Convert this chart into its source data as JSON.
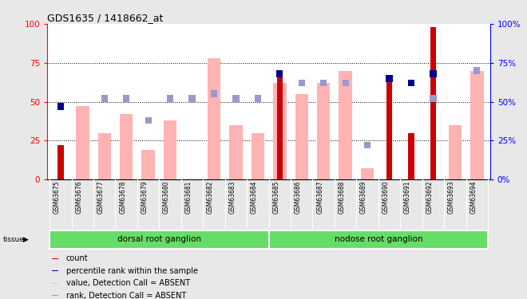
{
  "title": "GDS1635 / 1418662_at",
  "samples": [
    "GSM63675",
    "GSM63676",
    "GSM63677",
    "GSM63678",
    "GSM63679",
    "GSM63680",
    "GSM63681",
    "GSM63682",
    "GSM63683",
    "GSM63684",
    "GSM63685",
    "GSM63686",
    "GSM63687",
    "GSM63688",
    "GSM63689",
    "GSM63690",
    "GSM63691",
    "GSM63692",
    "GSM63693",
    "GSM63694"
  ],
  "count_values": [
    22,
    0,
    0,
    0,
    0,
    0,
    0,
    0,
    0,
    0,
    70,
    0,
    0,
    0,
    0,
    65,
    30,
    98,
    0,
    0
  ],
  "percentile_rank": [
    47,
    0,
    0,
    0,
    0,
    0,
    0,
    0,
    0,
    0,
    68,
    0,
    0,
    0,
    0,
    65,
    62,
    68,
    0,
    0
  ],
  "value_absent": [
    0,
    47,
    30,
    42,
    19,
    38,
    0,
    78,
    35,
    30,
    62,
    55,
    62,
    70,
    7,
    0,
    0,
    0,
    35,
    70
  ],
  "rank_absent": [
    0,
    0,
    52,
    52,
    38,
    52,
    52,
    55,
    52,
    52,
    0,
    62,
    62,
    62,
    22,
    0,
    0,
    52,
    0,
    70
  ],
  "tissue_groups": [
    {
      "label": "dorsal root ganglion",
      "start": 0,
      "end": 9
    },
    {
      "label": "nodose root ganglion",
      "start": 10,
      "end": 19
    }
  ],
  "bar_color_count": "#cc0000",
  "bar_color_value_absent": "#ffb3b3",
  "square_color_percentile": "#00008b",
  "square_color_rank_absent": "#9999cc",
  "tissue_color": "#66dd66",
  "bg_color": "#e8e8e8",
  "plot_bg": "#ffffff",
  "ylim": [
    0,
    100
  ],
  "grid_dotted_vals": [
    25,
    50,
    75
  ]
}
